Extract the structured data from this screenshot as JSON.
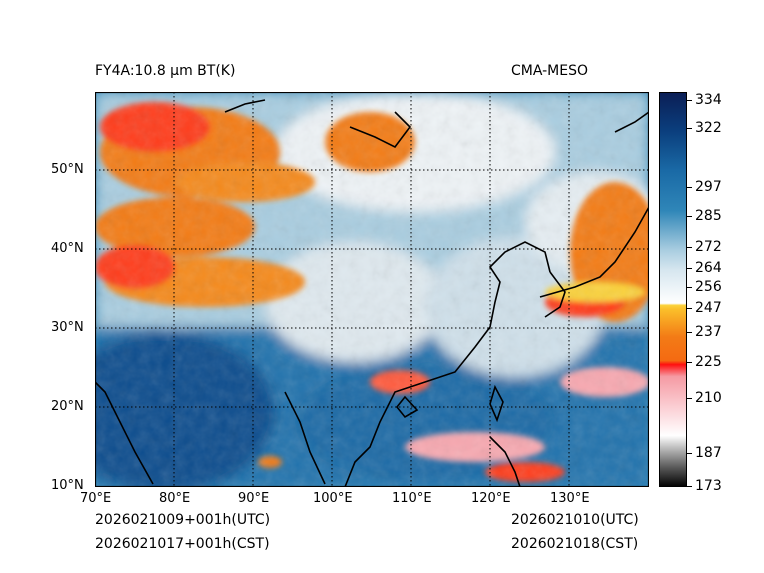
{
  "header": {
    "title_left": "FY4A:10.8 µm BT(K)",
    "title_right": "CMA-MESO"
  },
  "map": {
    "lon_ticks": [
      "70°E",
      "80°E",
      "90°E",
      "100°E",
      "110°E",
      "120°E",
      "130°E"
    ],
    "lat_ticks": [
      "10°N",
      "20°N",
      "30°N",
      "40°N",
      "50°N"
    ],
    "lon_range": [
      70,
      140
    ],
    "lat_range": [
      10,
      60
    ]
  },
  "colorbar": {
    "ticks": [
      "334",
      "322",
      "297",
      "285",
      "272",
      "264",
      "256",
      "247",
      "237",
      "225",
      "210",
      "187",
      "173"
    ],
    "colors": {
      "cold": "#000000",
      "gray": "#bfbfbf",
      "pink": "#f7a8b0",
      "red": "#ff0f0f",
      "orange": "#f37b16",
      "yellow": "#fbd23b",
      "white": "#eef3f6",
      "lightblue": "#a9cde0",
      "midblue": "#2f86b8",
      "darkblue": "#0b4e8e",
      "navy": "#0b1e55"
    }
  },
  "footer": {
    "init_utc": "2026021009+001h(UTC)",
    "init_cst": "2026021017+001h(CST)",
    "valid_utc": "2026021010(UTC)",
    "valid_cst": "2026021018(CST)"
  }
}
